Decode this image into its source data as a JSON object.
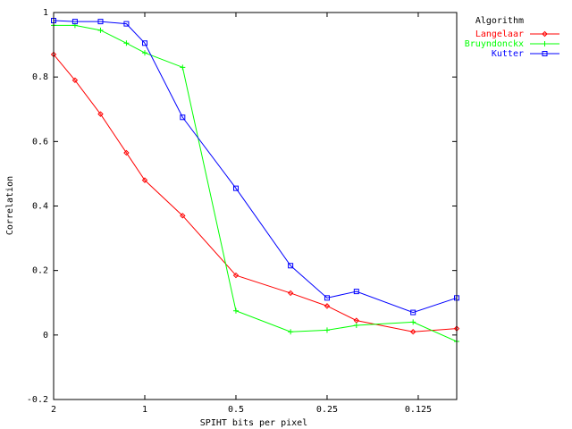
{
  "chart_data": {
    "type": "line",
    "title": "",
    "xlabel": "SPIHT bits per pixel",
    "ylabel": "Correlation",
    "x_scale": "log2-reversed",
    "xlim": [
      2,
      0.0933
    ],
    "ylim": [
      -0.2,
      1
    ],
    "grid": false,
    "legend_position": "top-right",
    "legend_title": "Algorithm",
    "x_ticks": [
      {
        "value": 2,
        "label": "2"
      },
      {
        "value": 1,
        "label": "1"
      },
      {
        "value": 0.5,
        "label": "0.5"
      },
      {
        "value": 0.25,
        "label": "0.25"
      },
      {
        "value": 0.125,
        "label": "0.125"
      }
    ],
    "y_ticks": [
      {
        "value": -0.2,
        "label": "-0.2"
      },
      {
        "value": 0,
        "label": "0"
      },
      {
        "value": 0.2,
        "label": "0.2"
      },
      {
        "value": 0.4,
        "label": "0.4"
      },
      {
        "value": 0.6,
        "label": "0.6"
      },
      {
        "value": 0.8,
        "label": "0.8"
      },
      {
        "value": 1,
        "label": "1"
      }
    ],
    "x": [
      2,
      1.7,
      1.4,
      1.15,
      1,
      0.75,
      0.5,
      0.33,
      0.25,
      0.2,
      0.13,
      0.0933
    ],
    "series": [
      {
        "name": "Langelaar",
        "color": "#ff0000",
        "marker": "diamond",
        "values": [
          0.87,
          0.79,
          0.685,
          0.565,
          0.48,
          0.37,
          0.185,
          0.13,
          0.09,
          0.045,
          0.01,
          0.02
        ]
      },
      {
        "name": "Bruyndonckx",
        "color": "#00ff00",
        "marker": "plus",
        "values": [
          0.96,
          0.96,
          0.945,
          0.905,
          0.875,
          0.83,
          0.075,
          0.01,
          0.015,
          0.03,
          0.04,
          -0.02
        ]
      },
      {
        "name": "Kutter",
        "color": "#0000ff",
        "marker": "square",
        "values": [
          0.975,
          0.972,
          0.972,
          0.965,
          0.905,
          0.675,
          0.455,
          0.215,
          0.115,
          0.135,
          0.07,
          0.115
        ]
      }
    ]
  }
}
